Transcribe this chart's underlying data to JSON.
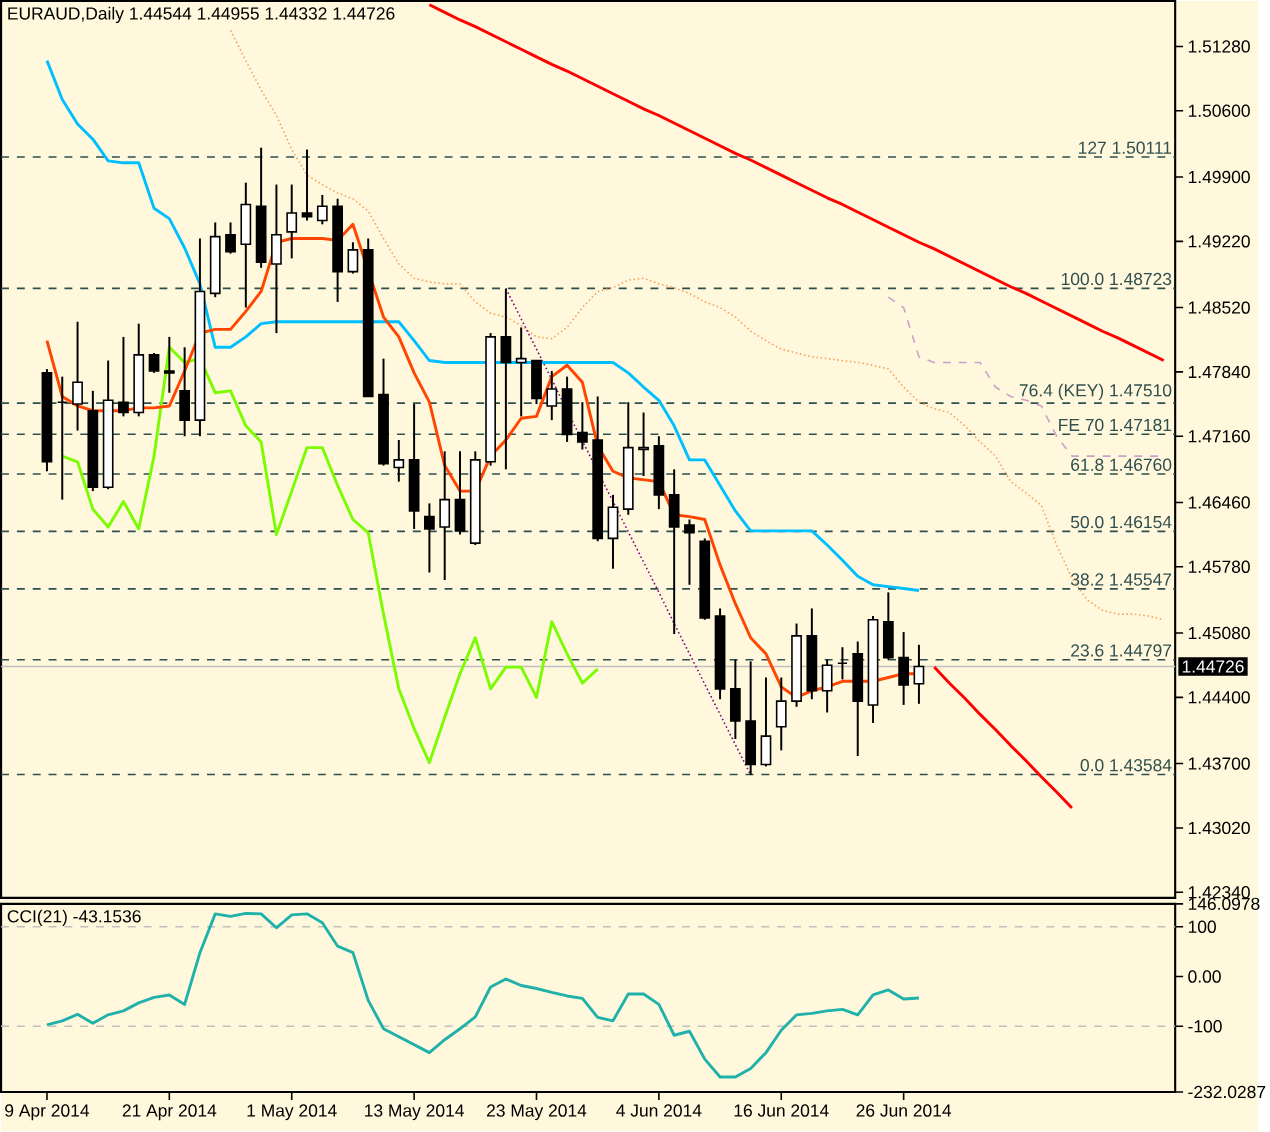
{
  "chart_data": [
    {
      "type": "candlestick",
      "title": "EURAUD,Daily 1.44544 1.44955 1.44332 1.44726",
      "categories": [
        null,
        null,
        null,
        null,
        null,
        null,
        null,
        null,
        null,
        null,
        null,
        null,
        null,
        null,
        null,
        null,
        null,
        null,
        null,
        null,
        null,
        null,
        null,
        null,
        null,
        null,
        null,
        null,
        null,
        null,
        null,
        null,
        null,
        null,
        null,
        null,
        null,
        null,
        null,
        null,
        null,
        null,
        null,
        null,
        null,
        null,
        null,
        null,
        null,
        null,
        null,
        null,
        null,
        null,
        null,
        null,
        null,
        null,
        null,
        null,
        null,
        null,
        null,
        null,
        null,
        null,
        null,
        null,
        null,
        null,
        null,
        null,
        null,
        null
      ],
      "ohlc": [
        [
          1.4783,
          1.4787,
          1.4679,
          1.4689
        ],
        [
          1.4752,
          1.4779,
          1.4649,
          1.4752
        ],
        [
          1.475,
          1.4837,
          1.4722,
          1.4773
        ],
        [
          1.4743,
          1.4764,
          1.4658,
          1.4662
        ],
        [
          1.4662,
          1.4796,
          1.466,
          1.4754
        ],
        [
          1.4752,
          1.4821,
          1.4737,
          1.4741
        ],
        [
          1.4741,
          1.4835,
          1.4737,
          1.4802
        ],
        [
          1.4802,
          1.4804,
          1.4783,
          1.4785
        ],
        [
          1.4785,
          1.4821,
          1.4762,
          1.4783
        ],
        [
          1.4764,
          1.481,
          1.4716,
          1.4733
        ],
        [
          1.4733,
          1.4925,
          1.4716,
          1.4869
        ],
        [
          1.4867,
          1.4942,
          1.4863,
          1.4927
        ],
        [
          1.4929,
          1.4942,
          1.4909,
          1.4911
        ],
        [
          1.4919,
          1.4984,
          1.4852,
          1.4961
        ],
        [
          1.4959,
          1.5021,
          1.4894,
          1.49
        ],
        [
          1.4898,
          1.4982,
          1.4825,
          1.4929
        ],
        [
          1.4932,
          1.4982,
          1.4904,
          1.4952
        ],
        [
          1.4952,
          1.5019,
          1.4944,
          1.4948
        ],
        [
          1.4944,
          1.4971,
          1.494,
          1.4959
        ],
        [
          1.4959,
          1.4967,
          1.4858,
          1.489
        ],
        [
          1.489,
          1.4921,
          1.4888,
          1.4913
        ],
        [
          1.4913,
          1.4925,
          1.4758,
          1.4758
        ],
        [
          1.476,
          1.4798,
          1.4685,
          1.4687
        ],
        [
          1.4683,
          1.4712,
          1.4668,
          1.4691
        ],
        [
          1.4691,
          1.475,
          1.4618,
          1.4637
        ],
        [
          1.4631,
          1.4645,
          1.4572,
          1.4618
        ],
        [
          1.462,
          1.47,
          1.4564,
          1.4649
        ],
        [
          1.4649,
          1.47,
          1.4612,
          1.4616
        ],
        [
          1.4603,
          1.47,
          1.4601,
          1.4691
        ],
        [
          1.4689,
          1.4825,
          1.4685,
          1.4821
        ],
        [
          1.4821,
          1.4872,
          1.4681,
          1.4794
        ],
        [
          1.4794,
          1.4831,
          1.4737,
          1.4798
        ],
        [
          1.4796,
          1.4796,
          1.475,
          1.4756
        ],
        [
          1.4748,
          1.4785,
          1.4733,
          1.4766
        ],
        [
          1.4766,
          1.4779,
          1.471,
          1.4718
        ],
        [
          1.472,
          1.4752,
          1.4702,
          1.471
        ],
        [
          1.4712,
          1.4758,
          1.4605,
          1.4608
        ],
        [
          1.4608,
          1.4654,
          1.4576,
          1.4641
        ],
        [
          1.4639,
          1.4752,
          1.4633,
          1.4704
        ],
        [
          1.4702,
          1.4741,
          1.4674,
          1.4704
        ],
        [
          1.4706,
          1.4716,
          1.4639,
          1.4654
        ],
        [
          1.4654,
          1.4681,
          1.4507,
          1.462
        ],
        [
          1.4622,
          1.4628,
          1.4559,
          1.4614
        ],
        [
          1.4605,
          1.4608,
          1.4522,
          1.4524
        ],
        [
          1.4526,
          1.4534,
          1.4438,
          1.4449
        ],
        [
          1.4449,
          1.448,
          1.4396,
          1.4415
        ],
        [
          1.4415,
          1.4478,
          1.4358,
          1.4369
        ],
        [
          1.4369,
          1.4461,
          1.4367,
          1.4399
        ],
        [
          1.4409,
          1.4461,
          1.4384,
          1.4436
        ],
        [
          1.4436,
          1.4518,
          1.443,
          1.4505
        ],
        [
          1.4505,
          1.4534,
          1.4438,
          1.4447
        ],
        [
          1.4447,
          1.448,
          1.4424,
          1.4474
        ],
        [
          1.4476,
          1.4493,
          1.4459,
          1.4476
        ],
        [
          1.4486,
          1.4499,
          1.4378,
          1.4436
        ],
        [
          1.4432,
          1.4526,
          1.4413,
          1.4522
        ],
        [
          1.452,
          1.4551,
          1.448,
          1.4482
        ],
        [
          1.4482,
          1.4509,
          1.4432,
          1.4453
        ],
        [
          1.44544,
          1.44955,
          1.44332,
          1.44726
        ],
        null,
        null,
        null,
        null,
        null,
        null,
        null,
        null,
        null,
        null,
        null,
        null,
        null,
        null,
        null,
        null
      ],
      "series": [
        {
          "type": "line",
          "color": "#f4a460",
          "line_style": "dotted",
          "values": [
            null,
            null,
            null,
            null,
            null,
            null,
            null,
            null,
            null,
            null,
            null,
            null,
            1.5145,
            1.5113,
            1.5082,
            1.5055,
            1.5019,
            1.4992,
            1.4982,
            1.4973,
            1.4967,
            1.4954,
            1.4925,
            1.4898,
            1.4883,
            1.4879,
            1.4877,
            1.4877,
            1.4858,
            1.4846,
            1.4842,
            1.4833,
            1.4821,
            1.4819,
            1.4831,
            1.4852,
            1.4869,
            1.4873,
            1.4881,
            1.4883,
            1.4877,
            1.4873,
            1.4867,
            1.4858,
            1.4852,
            1.4842,
            1.4827,
            1.4817,
            1.4808,
            1.4804,
            1.48,
            1.4798,
            1.4796,
            1.4794,
            1.4791,
            1.4787,
            1.4768,
            1.4752,
            1.4745,
            1.4741,
            1.4727,
            1.471,
            1.4695,
            1.4668,
            1.4656,
            1.4643,
            1.4601,
            1.4566,
            1.4543,
            1.4532,
            1.4528,
            1.4528,
            1.4526,
            1.4522
          ]
        },
        {
          "type": "line",
          "color": "#c8a2c8",
          "line_style": "dashed",
          "values": [
            null,
            null,
            null,
            null,
            null,
            null,
            null,
            null,
            null,
            null,
            null,
            null,
            null,
            null,
            null,
            null,
            null,
            null,
            null,
            null,
            null,
            null,
            null,
            null,
            null,
            null,
            null,
            null,
            null,
            null,
            null,
            null,
            null,
            null,
            null,
            null,
            null,
            null,
            null,
            null,
            null,
            null,
            null,
            null,
            null,
            null,
            null,
            null,
            null,
            null,
            null,
            null,
            null,
            null,
            null,
            1.4863,
            1.4852,
            1.48,
            1.4794,
            1.4794,
            1.4794,
            1.4794,
            1.4768,
            1.4758,
            1.4754,
            1.4748,
            1.4716,
            1.4695,
            1.4695,
            1.4695,
            1.4695,
            1.4695,
            1.4695,
            1.4695
          ]
        },
        {
          "type": "line",
          "color": "#ff0000",
          "line_style": "solid",
          "values": [
            null,
            null,
            null,
            null,
            null,
            null,
            null,
            null,
            null,
            null,
            null,
            null,
            null,
            null,
            null,
            null,
            null,
            null,
            null,
            null,
            null,
            null,
            null,
            null,
            null,
            1.5172,
            1.5164,
            1.5156,
            1.5149,
            1.5141,
            1.5133,
            1.5125,
            1.5117,
            1.5109,
            1.5102,
            1.5094,
            1.5086,
            1.5078,
            1.507,
            1.5062,
            1.5055,
            1.5047,
            1.5039,
            1.5031,
            1.5023,
            1.5015,
            1.5008,
            1.5,
            1.4992,
            1.4984,
            1.4976,
            1.4968,
            1.4961,
            1.4953,
            1.4945,
            1.4937,
            1.4929,
            1.4921,
            1.4914,
            1.4906,
            1.4898,
            1.489,
            1.4882,
            1.4874,
            1.4867,
            1.4859,
            1.4851,
            1.4843,
            1.4835,
            1.4827,
            1.482,
            1.4812,
            1.4804,
            1.4796
          ]
        },
        {
          "type": "line",
          "color": "#800080",
          "line_style": "dotted",
          "values": [
            null,
            null,
            null,
            null,
            null,
            null,
            null,
            null,
            null,
            null,
            null,
            null,
            null,
            null,
            null,
            null,
            null,
            null,
            null,
            null,
            null,
            null,
            null,
            null,
            null,
            null,
            null,
            null,
            null,
            null,
            1.4872,
            1.484,
            1.4808,
            1.4776,
            1.4743,
            1.4711,
            null,
            1.4647,
            1.4615,
            1.4583,
            1.4551,
            1.4518,
            1.4486,
            1.4454,
            1.4422,
            1.439,
            1.4358,
            null,
            null,
            null,
            null,
            null,
            null,
            null,
            null,
            null,
            null,
            null,
            null,
            null,
            null,
            null,
            null,
            null,
            null,
            null,
            null,
            null,
            null,
            null,
            null,
            null,
            null,
            null
          ]
        },
        {
          "type": "line",
          "color": "#7cfc00",
          "line_style": "solid",
          "values": [
            null,
            1.4695,
            1.4689,
            1.4639,
            1.462,
            1.4647,
            1.4618,
            1.4695,
            1.481,
            1.4794,
            1.4798,
            1.4762,
            1.4764,
            1.4727,
            1.471,
            1.4612,
            1.4658,
            1.4704,
            1.4704,
            1.4664,
            1.4628,
            1.4614,
            1.4528,
            1.4449,
            1.4407,
            1.4371,
            1.4419,
            1.4465,
            1.4503,
            1.4449,
            1.4472,
            1.4472,
            1.444,
            1.452,
            1.4486,
            1.4455,
            1.447,
            null,
            null,
            null,
            null,
            null,
            null,
            null,
            null,
            null,
            null,
            null,
            null,
            null,
            null,
            null,
            null,
            null,
            null,
            null,
            null,
            null,
            null,
            null,
            null,
            null,
            null,
            null,
            null,
            null,
            null,
            null,
            null,
            null,
            null,
            null,
            null,
            null
          ]
        },
        {
          "type": "line",
          "color": "#00bfff",
          "line_style": "solid",
          "values": [
            1.5113,
            1.5072,
            1.5046,
            1.503,
            1.5007,
            1.5005,
            1.5005,
            1.4957,
            1.4946,
            1.4915,
            1.4877,
            1.481,
            1.481,
            1.4821,
            1.4835,
            1.4837,
            1.4837,
            1.4837,
            1.4837,
            1.4837,
            1.4837,
            1.4837,
            1.4837,
            1.4837,
            1.4817,
            1.4796,
            1.4794,
            1.4794,
            1.4794,
            1.4794,
            1.4794,
            1.4794,
            1.4794,
            1.4794,
            1.4794,
            1.4794,
            1.4794,
            1.4794,
            1.4783,
            1.4768,
            1.4754,
            1.4727,
            1.4691,
            1.4691,
            1.4664,
            1.4637,
            1.4616,
            1.4616,
            1.4616,
            1.4616,
            1.4616,
            1.4601,
            1.4585,
            1.4568,
            1.4559,
            1.4557,
            1.4555,
            1.4553,
            null,
            null,
            null,
            null,
            null,
            null,
            null,
            null,
            null,
            null,
            null,
            null,
            null,
            null,
            null,
            null
          ]
        },
        {
          "type": "line",
          "color": "#ff4500",
          "line_style": "solid",
          "values": [
            1.4817,
            1.4758,
            1.4748,
            1.4743,
            1.4743,
            1.4743,
            1.4746,
            1.4746,
            1.4748,
            1.4785,
            1.4825,
            1.4829,
            1.4829,
            1.4848,
            1.4869,
            1.4921,
            1.4925,
            1.4925,
            1.4925,
            1.4923,
            1.494,
            null,
            1.4842,
            1.4821,
            1.4783,
            1.4752,
            1.4685,
            1.4658,
            1.4658,
            1.4695,
            1.4712,
            1.4735,
            1.4737,
            1.4779,
            1.4791,
            1.4773,
            1.4706,
            1.4679,
            1.4672,
            1.467,
            1.4668,
            1.4633,
            1.4631,
            1.4628,
            1.458,
            1.4539,
            1.4503,
            1.4486,
            1.4451,
            1.444,
            1.4447,
            1.4451,
            1.4457,
            1.4457,
            1.4457,
            1.4461,
            1.4465,
            1.4465,
            null,
            null,
            null,
            null,
            null,
            null,
            null,
            null,
            null,
            null,
            null,
            null,
            null,
            null,
            null,
            null
          ]
        },
        {
          "type": "line",
          "color": "#ff0000",
          "line_style": "solid",
          "values": [
            null,
            null,
            null,
            null,
            null,
            null,
            null,
            null,
            null,
            null,
            null,
            null,
            null,
            null,
            null,
            null,
            null,
            null,
            null,
            null,
            null,
            null,
            null,
            null,
            null,
            null,
            null,
            null,
            null,
            null,
            null,
            null,
            null,
            null,
            null,
            null,
            null,
            null,
            null,
            null,
            null,
            null,
            null,
            null,
            null,
            null,
            null,
            null,
            null,
            null,
            null,
            null,
            null,
            null,
            null,
            null,
            null,
            null,
            1.4472,
            1.4455,
            1.4439,
            1.4422,
            1.4406,
            1.4389,
            1.4373,
            1.4356,
            1.434,
            1.4323,
            null,
            null,
            null,
            null,
            null,
            null
          ]
        }
      ],
      "ylim": [
        1.4228,
        1.5176
      ],
      "yticks": [
        {
          "value": 1.5128,
          "label": "1.51280"
        },
        {
          "value": 1.506,
          "label": "1.50600"
        },
        {
          "value": 1.499,
          "label": "1.49900"
        },
        {
          "value": 1.4922,
          "label": "1.49220"
        },
        {
          "value": 1.4852,
          "label": "1.48520"
        },
        {
          "value": 1.4784,
          "label": "1.47840"
        },
        {
          "value": 1.4716,
          "label": "1.47160"
        },
        {
          "value": 1.4646,
          "label": "1.46460"
        },
        {
          "value": 1.4578,
          "label": "1.45780"
        },
        {
          "value": 1.4508,
          "label": "1.45080"
        },
        {
          "value": 1.444,
          "label": "1.44400"
        },
        {
          "value": 1.437,
          "label": "1.43700"
        },
        {
          "value": 1.4302,
          "label": "1.43020"
        },
        {
          "value": 1.4234,
          "label": "1.42340"
        }
      ],
      "ref_lines": [
        {
          "axis": "y",
          "value": 1.50111,
          "label": "127 1.50111",
          "color": "#2f4f4f",
          "line_style": "dashed"
        },
        {
          "axis": "y",
          "value": 1.48723,
          "label": "100.0 1.48723",
          "color": "#2f4f4f",
          "line_style": "dashed"
        },
        {
          "axis": "y",
          "value": 1.4751,
          "label": "76.4 (KEY) 1.47510",
          "color": "#2f4f4f",
          "line_style": "dashed"
        },
        {
          "axis": "y",
          "value": 1.47181,
          "label": "FE 70 1.47181",
          "color": "#2f4f4f",
          "line_style": "dashed"
        },
        {
          "axis": "y",
          "value": 1.4676,
          "label": "61.8 1.46760",
          "color": "#2f4f4f",
          "line_style": "dashed"
        },
        {
          "axis": "y",
          "value": 1.46154,
          "label": "50.0 1.46154",
          "color": "#2f4f4f",
          "line_style": "dashed"
        },
        {
          "axis": "y",
          "value": 1.45547,
          "label": "38.2 1.45547",
          "color": "#2f4f4f",
          "line_style": "dashed"
        },
        {
          "axis": "y",
          "value": 1.44797,
          "label": "23.6 1.44797",
          "color": "#2f4f4f",
          "line_style": "dashed"
        },
        {
          "axis": "y",
          "value": 1.43584,
          "label": "0.0 1.43584",
          "color": "#2f4f4f",
          "line_style": "dashed"
        },
        {
          "axis": "y",
          "value": 1.44726,
          "label": "1.44726",
          "color": "#c0c0c0",
          "line_style": "solid"
        }
      ],
      "tick_labels": "y"
    },
    {
      "type": "line",
      "title": "CCI(21) -43.1536",
      "categories": [
        "9 Apr 2014",
        null,
        null,
        null,
        null,
        null,
        null,
        null,
        "21 Apr 2014",
        null,
        null,
        null,
        null,
        null,
        null,
        null,
        "1 May 2014",
        null,
        null,
        null,
        null,
        null,
        null,
        null,
        "13 May 2014",
        null,
        null,
        null,
        null,
        null,
        null,
        null,
        "23 May 2014",
        null,
        null,
        null,
        null,
        null,
        null,
        null,
        "4 Jun 2014",
        null,
        null,
        null,
        null,
        null,
        null,
        null,
        "16 Jun 2014",
        null,
        null,
        null,
        null,
        null,
        null,
        null,
        "26 Jun 2014",
        null,
        null,
        null,
        null,
        null,
        null,
        null,
        null,
        null,
        null,
        null,
        null,
        null,
        null,
        null,
        null,
        null
      ],
      "series": [
        {
          "color": "#20b2aa",
          "values": [
            -97,
            -89,
            -76,
            -94,
            -77,
            -69,
            -53,
            -42,
            -37,
            -56,
            48,
            126,
            121,
            127,
            126,
            98,
            124,
            126,
            108,
            61,
            48,
            -48,
            -105,
            -121,
            -137,
            -153,
            -127,
            -105,
            -81,
            -21,
            -5,
            -18,
            -24,
            -32,
            -39,
            -44,
            -82,
            -89,
            -35,
            -35,
            -56,
            -118,
            -110,
            -166,
            -202,
            -202,
            -185,
            -153,
            -108,
            -77,
            -74,
            -69,
            -66,
            -77,
            -37,
            -27,
            -45,
            -43.1536,
            null,
            null,
            null,
            null,
            null,
            null,
            null,
            null,
            null,
            null,
            null,
            null,
            null,
            null,
            null,
            null
          ]
        }
      ],
      "ylim": [
        -232.0287,
        146.0978
      ],
      "yticks": [
        {
          "value": 146.0978,
          "label": "146.0978"
        },
        {
          "value": 100,
          "label": "100"
        },
        {
          "value": 0,
          "label": "0.00"
        },
        {
          "value": -100,
          "label": "-100"
        },
        {
          "value": -232.0287,
          "label": "-232.0287"
        }
      ],
      "ref_lines": [
        {
          "axis": "y",
          "value": 100,
          "color": "#c0c0c0",
          "line_style": "dashed"
        },
        {
          "axis": "y",
          "value": -100,
          "color": "#c0c0c0",
          "line_style": "dashed"
        }
      ]
    }
  ]
}
